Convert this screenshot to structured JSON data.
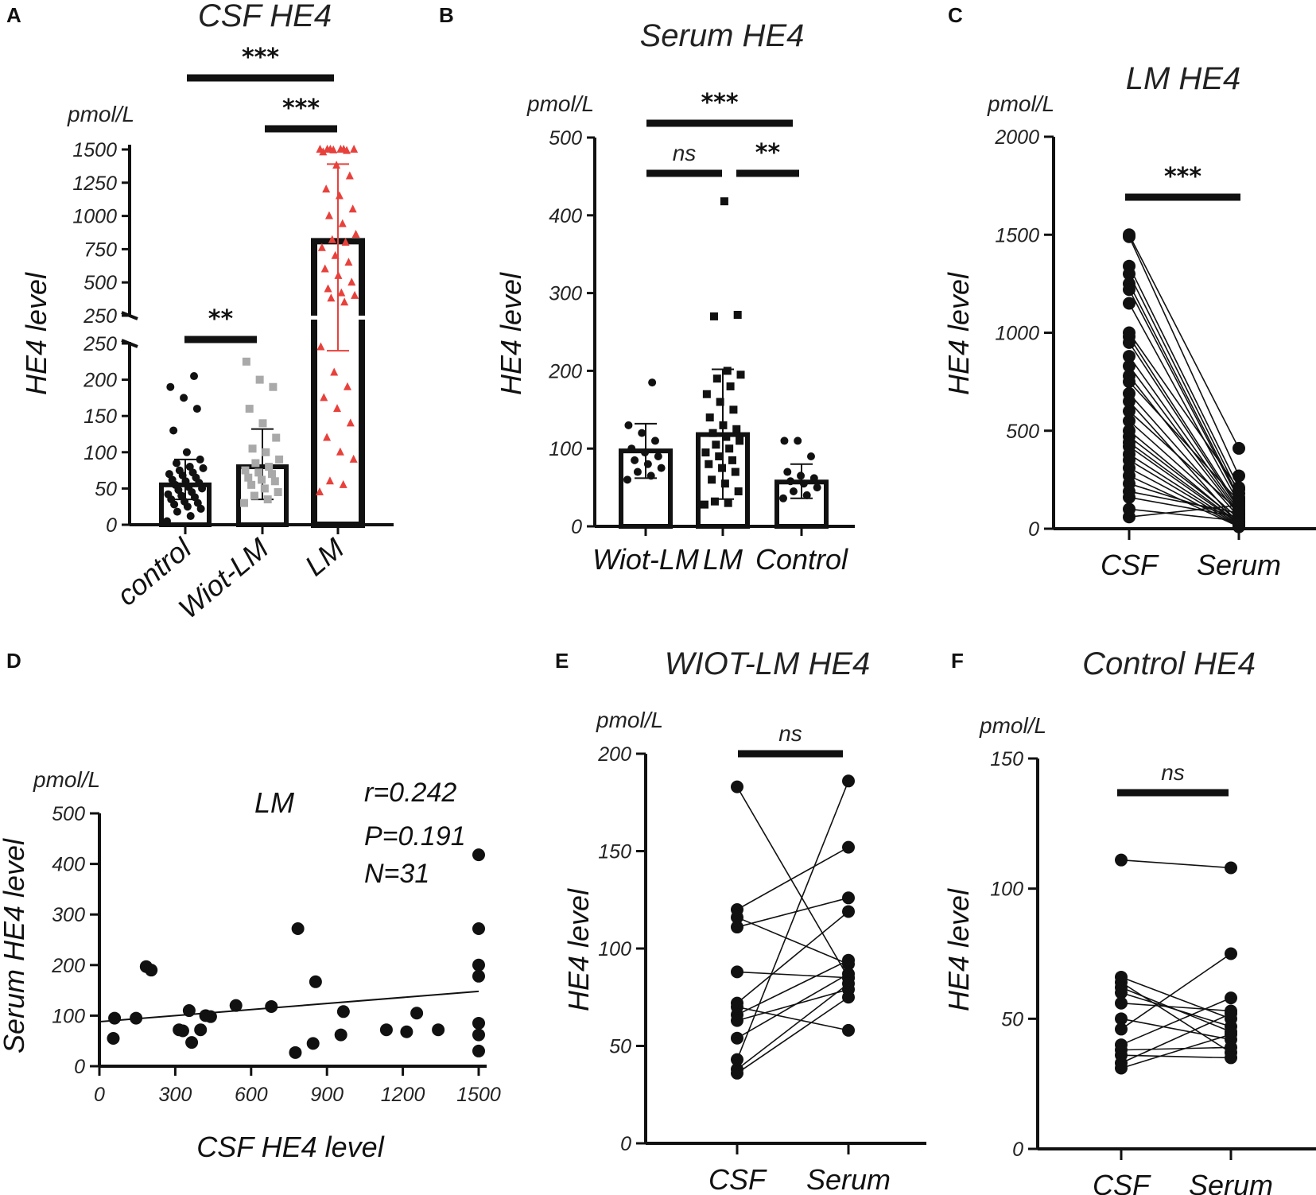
{
  "figure": {
    "panel_letters": [
      "A",
      "B",
      "C",
      "D",
      "E",
      "F"
    ]
  },
  "colors": {
    "black": "#111111",
    "gray": "#a9a9a9",
    "red": "#e8413c"
  },
  "chart_data": [
    {
      "id": "A",
      "type": "bar",
      "title": "CSF HE4",
      "unit": "pmol/L",
      "ylabel": "HE4 level",
      "categories": [
        "control",
        "Wiot-LM",
        "LM"
      ],
      "values": [
        55,
        80,
        810
      ],
      "errors": [
        [
          35,
          90
        ],
        [
          35,
          132
        ],
        [
          240,
          1390
        ]
      ],
      "series_colors": [
        "#111111",
        "#a9a9a9",
        "#e8413c"
      ],
      "axis_break": {
        "lower": [
          0,
          250
        ],
        "upper": [
          250,
          1500
        ]
      },
      "yticks_lower": [
        0,
        50,
        100,
        150,
        200,
        250
      ],
      "yticks_upper": [
        250,
        500,
        750,
        1000,
        1250,
        1500
      ],
      "ytick_labels_lower": [
        "0",
        "50",
        "100",
        "150",
        "200",
        "250"
      ],
      "ytick_labels_upper": [
        "250",
        "500",
        "750",
        "1000",
        "1250",
        "1500"
      ],
      "points": {
        "control": [
          5,
          12,
          18,
          22,
          25,
          28,
          30,
          32,
          35,
          38,
          40,
          42,
          45,
          48,
          50,
          52,
          55,
          58,
          60,
          62,
          65,
          68,
          70,
          72,
          75,
          78,
          80,
          85,
          90,
          100,
          130,
          160,
          175,
          190,
          205
        ],
        "Wiot-LM": [
          30,
          35,
          40,
          45,
          50,
          55,
          60,
          62,
          65,
          70,
          72,
          75,
          80,
          85,
          90,
          100,
          105,
          120,
          140,
          160,
          190,
          200,
          225
        ],
        "LM": [
          45,
          55,
          60,
          90,
          100,
          120,
          140,
          160,
          175,
          190,
          210,
          245,
          350,
          380,
          400,
          420,
          450,
          500,
          550,
          600,
          650,
          700,
          760,
          800,
          820,
          860,
          940,
          1000,
          1050,
          1150,
          1200,
          1300,
          1380,
          1480,
          1490,
          1495,
          1500,
          1500,
          1500,
          1500,
          1500,
          1500
        ]
      },
      "comparisons": [
        {
          "pair": [
            "control",
            "LM"
          ],
          "label": "***"
        },
        {
          "pair": [
            "Wiot-LM",
            "LM"
          ],
          "label": "***"
        },
        {
          "pair": [
            "control",
            "Wiot-LM"
          ],
          "label": "**"
        }
      ]
    },
    {
      "id": "B",
      "type": "bar",
      "title": "Serum HE4",
      "unit": "pmol/L",
      "ylabel": "HE4 level",
      "categories": [
        "Wiot-LM",
        "LM",
        "Control"
      ],
      "values": [
        97,
        118,
        57
      ],
      "errors": [
        [
          62,
          132
        ],
        [
          35,
          202
        ],
        [
          36,
          80
        ]
      ],
      "ylim": [
        0,
        500
      ],
      "yticks": [
        0,
        100,
        200,
        300,
        400,
        500
      ],
      "ytick_labels": [
        "0",
        "100",
        "200",
        "300",
        "400",
        "500"
      ],
      "points": {
        "Wiot-LM": [
          60,
          65,
          70,
          75,
          80,
          85,
          90,
          95,
          100,
          110,
          120,
          130,
          185
        ],
        "LM": [
          28,
          30,
          32,
          45,
          55,
          60,
          70,
          75,
          80,
          85,
          90,
          95,
          100,
          105,
          110,
          115,
          120,
          125,
          130,
          140,
          150,
          160,
          170,
          180,
          190,
          195,
          200,
          270,
          272,
          418
        ],
        "Control": [
          36,
          40,
          45,
          50,
          55,
          58,
          62,
          65,
          70,
          90,
          110,
          110
        ]
      },
      "marker_shapes": {
        "Wiot-LM": "circle",
        "LM": "square",
        "Control": "circle"
      },
      "comparisons": [
        {
          "pair": [
            "Wiot-LM",
            "Control"
          ],
          "label": "***"
        },
        {
          "pair": [
            "Wiot-LM",
            "LM"
          ],
          "label": "ns"
        },
        {
          "pair": [
            "LM",
            "Control"
          ],
          "label": "**"
        }
      ]
    },
    {
      "id": "C",
      "type": "line",
      "title": "LM HE4",
      "unit": "pmol/L",
      "ylabel": "HE4 level",
      "categories": [
        "CSF",
        "Serum"
      ],
      "ylim": [
        0,
        2000
      ],
      "yticks": [
        0,
        500,
        1000,
        1500,
        2000
      ],
      "ytick_labels": [
        "0",
        "500",
        "1000",
        "1500",
        "2000"
      ],
      "pairs": [
        [
          1500,
          410
        ],
        [
          1490,
          270
        ],
        [
          1340,
          210
        ],
        [
          1300,
          180
        ],
        [
          1250,
          160
        ],
        [
          1220,
          150
        ],
        [
          1150,
          130
        ],
        [
          980,
          110
        ],
        [
          950,
          100
        ],
        [
          880,
          90
        ],
        [
          830,
          80
        ],
        [
          780,
          70
        ],
        [
          690,
          60
        ],
        [
          550,
          50
        ],
        [
          470,
          40
        ],
        [
          440,
          30
        ],
        [
          420,
          25
        ],
        [
          380,
          20
        ],
        [
          350,
          15
        ],
        [
          310,
          12
        ],
        [
          270,
          10
        ],
        [
          190,
          80
        ],
        [
          160,
          60
        ],
        [
          60,
          120
        ],
        [
          100,
          40
        ],
        [
          230,
          55
        ],
        [
          600,
          90
        ],
        [
          750,
          140
        ],
        [
          1000,
          200
        ],
        [
          500,
          35
        ],
        [
          650,
          25
        ]
      ],
      "comparisons": [
        {
          "pair": [
            "CSF",
            "Serum"
          ],
          "label": "***"
        }
      ]
    },
    {
      "id": "D",
      "type": "scatter",
      "unit": "pmol/L",
      "xlabel": "CSF HE4 level",
      "ylabel": "Serum HE4 level",
      "annotation": "LM",
      "stats": [
        "r=0.242",
        "P=0.191",
        "N=31"
      ],
      "xlim": [
        0,
        1500
      ],
      "ylim": [
        0,
        500
      ],
      "xticks": [
        0,
        300,
        600,
        900,
        1200,
        1500
      ],
      "xtick_labels": [
        "0",
        "300",
        "600",
        "900",
        "1200",
        "1500"
      ],
      "yticks": [
        0,
        100,
        200,
        300,
        400,
        500
      ],
      "ytick_labels": [
        "0",
        "100",
        "200",
        "300",
        "400",
        "500"
      ],
      "x": [
        55,
        60,
        145,
        185,
        205,
        315,
        330,
        365,
        355,
        400,
        420,
        440,
        540,
        680,
        775,
        785,
        845,
        855,
        955,
        965,
        1135,
        1215,
        1255,
        1340,
        1500,
        1500,
        1500,
        1500,
        1500,
        1500,
        1500
      ],
      "y": [
        55,
        95,
        95,
        197,
        190,
        72,
        70,
        47,
        110,
        72,
        100,
        98,
        120,
        118,
        27,
        272,
        45,
        167,
        62,
        108,
        72,
        68,
        105,
        72,
        418,
        272,
        200,
        178,
        85,
        62,
        30
      ],
      "fit": {
        "x": [
          0,
          1500
        ],
        "y": [
          88,
          148
        ]
      }
    },
    {
      "id": "E",
      "type": "line",
      "title": "WIOT-LM HE4",
      "unit": "pmol/L",
      "ylabel": "HE4 level",
      "categories": [
        "CSF",
        "Serum"
      ],
      "ylim": [
        0,
        200
      ],
      "yticks": [
        0,
        50,
        100,
        150,
        200
      ],
      "ytick_labels": [
        "0",
        "50",
        "100",
        "150",
        "200"
      ],
      "pairs": [
        [
          183,
          85
        ],
        [
          120,
          152
        ],
        [
          116,
          92
        ],
        [
          111,
          126
        ],
        [
          88,
          85
        ],
        [
          72,
          119
        ],
        [
          70,
          58
        ],
        [
          66,
          94
        ],
        [
          63,
          79
        ],
        [
          54,
          87
        ],
        [
          43,
          186
        ],
        [
          36,
          75
        ],
        [
          38,
          82
        ]
      ],
      "comparisons": [
        {
          "pair": [
            "CSF",
            "Serum"
          ],
          "label": "ns"
        }
      ]
    },
    {
      "id": "F",
      "type": "line",
      "title": "Control HE4",
      "unit": "pmol/L",
      "ylabel": "HE4 level",
      "categories": [
        "CSF",
        "Serum"
      ],
      "ylim": [
        0,
        150
      ],
      "yticks": [
        0,
        50,
        100,
        150
      ],
      "ytick_labels": [
        "0",
        "50",
        "100",
        "150"
      ],
      "pairs": [
        [
          111,
          108
        ],
        [
          66,
          50
        ],
        [
          64,
          37
        ],
        [
          60,
          47
        ],
        [
          56,
          53
        ],
        [
          50,
          42
        ],
        [
          46,
          75
        ],
        [
          40,
          58
        ],
        [
          38,
          39
        ],
        [
          36,
          35
        ],
        [
          33,
          52
        ],
        [
          31,
          44
        ],
        [
          62,
          45
        ]
      ],
      "comparisons": [
        {
          "pair": [
            "CSF",
            "Serum"
          ],
          "label": "ns"
        }
      ]
    }
  ]
}
